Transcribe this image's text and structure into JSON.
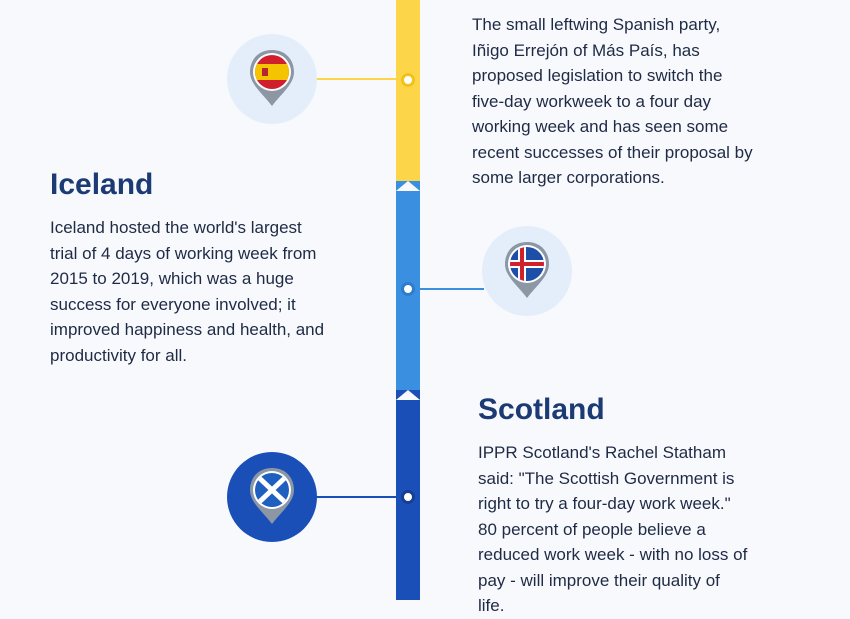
{
  "colors": {
    "spain": "#fcd648",
    "iceland": "#3b8fe0",
    "scotland": "#1b4fb8",
    "title": "#1c3a73",
    "text": "#1f2a44"
  },
  "entries": [
    {
      "country": "",
      "flag_icon": "spain-flag-pin-icon",
      "text": "The small leftwing Spanish party,\nIñigo Errejón of Más País, has\nproposed legislation to switch the\nfive-day workweek to a four day\nworking week and has seen some\nrecent successes of their proposal by\nsome larger corporations."
    },
    {
      "country": "Iceland",
      "flag_icon": "iceland-flag-pin-icon",
      "text": "Iceland hosted the world's largest\ntrial of 4 days of working week from\n2015 to 2019, which was a huge\nsuccess for everyone involved; it\nimproved happiness and health, and\nproductivity for all."
    },
    {
      "country": "Scotland",
      "flag_icon": "scotland-flag-pin-icon",
      "text": "IPPR Scotland's Rachel Statham\nsaid: \"The Scottish Government is\nright to try a four-day work week.\"\n80 percent of people believe a\nreduced work week - with no loss of\npay - will improve their quality of\nlife."
    }
  ]
}
